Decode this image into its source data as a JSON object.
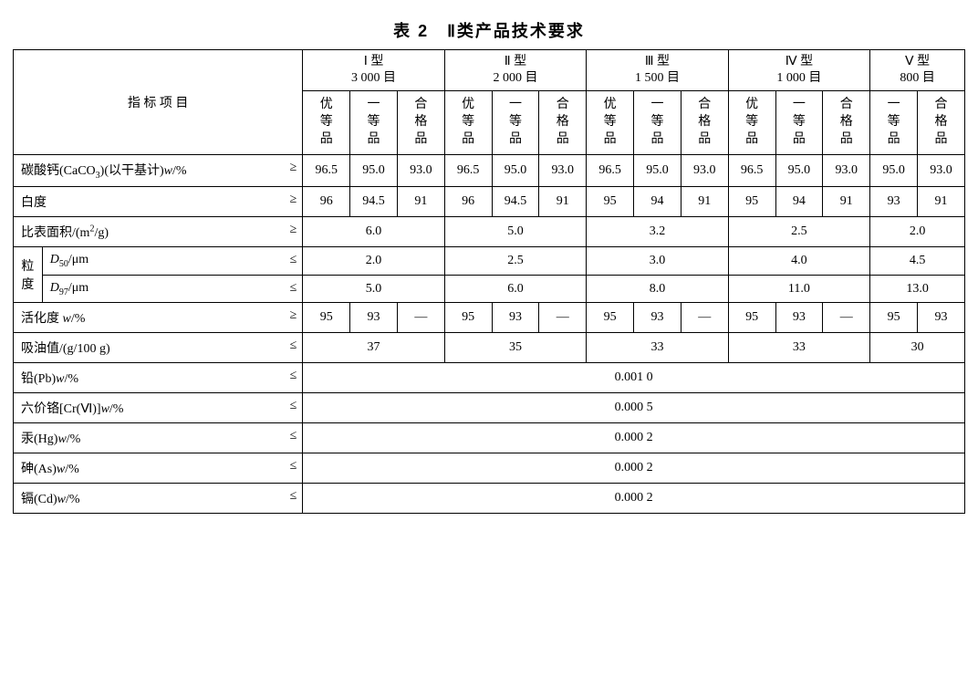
{
  "title": "表 2　Ⅱ类产品技术要求",
  "header": {
    "indicator_label": "指 标 项 目",
    "types": [
      {
        "name": "Ⅰ 型",
        "mesh": "3 000 目",
        "grades": [
          "优等品",
          "一等品",
          "合格品"
        ]
      },
      {
        "name": "Ⅱ 型",
        "mesh": "2 000 目",
        "grades": [
          "优等品",
          "一等品",
          "合格品"
        ]
      },
      {
        "name": "Ⅲ 型",
        "mesh": "1 500 目",
        "grades": [
          "优等品",
          "一等品",
          "合格品"
        ]
      },
      {
        "name": "Ⅳ 型",
        "mesh": "1 000 目",
        "grades": [
          "优等品",
          "一等品",
          "合格品"
        ]
      },
      {
        "name": "Ⅴ 型",
        "mesh": "800 目",
        "grades": [
          "一等品",
          "合格品"
        ]
      }
    ]
  },
  "rows": {
    "r1": {
      "label_html": "碳酸钙(CaCO<sub>3</sub>)(以干基计)<span class='ital'>w</span>/%",
      "sym": "≥",
      "cells": [
        "96.5",
        "95.0",
        "93.0",
        "96.5",
        "95.0",
        "93.0",
        "96.5",
        "95.0",
        "93.0",
        "96.5",
        "95.0",
        "93.0",
        "95.0",
        "93.0"
      ]
    },
    "r2": {
      "label_html": "白度",
      "sym": "≥",
      "cells": [
        "96",
        "94.5",
        "91",
        "96",
        "94.5",
        "91",
        "95",
        "94",
        "91",
        "95",
        "94",
        "91",
        "93",
        "91"
      ]
    },
    "r3": {
      "label_html": "比表面积/(m<sup>2</sup>/g)",
      "sym": "≥",
      "merged": [
        "6.0",
        "5.0",
        "3.2",
        "2.5",
        "2.0"
      ]
    },
    "r4": {
      "group_label": "粒度",
      "label_html": "<span class='ital'>D</span><sub>50</sub>/μm",
      "sym": "≤",
      "merged": [
        "2.0",
        "2.5",
        "3.0",
        "4.0",
        "4.5"
      ]
    },
    "r5": {
      "label_html": "<span class='ital'>D</span><sub>97</sub>/μm",
      "sym": "≤",
      "merged": [
        "5.0",
        "6.0",
        "8.0",
        "11.0",
        "13.0"
      ]
    },
    "r6": {
      "label_html": "活化度 <span class='ital'>w</span>/%",
      "sym": "≥",
      "cells": [
        "95",
        "93",
        "—",
        "95",
        "93",
        "—",
        "95",
        "93",
        "—",
        "95",
        "93",
        "—",
        "95",
        "93"
      ]
    },
    "r7": {
      "label_html": "吸油值/(g/100 g)",
      "sym": "≤",
      "merged": [
        "37",
        "35",
        "33",
        "33",
        "30"
      ]
    },
    "r8": {
      "label_html": "铅(Pb)<span class='ital'>w</span>/%",
      "sym": "≤",
      "full": "0.001 0"
    },
    "r9": {
      "label_html": "六价铬[Cr(Ⅵ)]<span class='ital'>w</span>/%",
      "sym": "≤",
      "full": "0.000 5"
    },
    "r10": {
      "label_html": "汞(Hg)<span class='ital'>w</span>/%",
      "sym": "≤",
      "full": "0.000 2"
    },
    "r11": {
      "label_html": "砷(As)<span class='ital'>w</span>/%",
      "sym": "≤",
      "full": "0.000 2"
    },
    "r12": {
      "label_html": "镉(Cd)<span class='ital'>w</span>/%",
      "sym": "≤",
      "full": "0.000 2"
    }
  },
  "style": {
    "background_color": "#ffffff",
    "border_color": "#000000",
    "text_color": "#000000",
    "title_fontsize_pt": 14,
    "body_fontsize_pt": 11,
    "font_family": "SimSun"
  }
}
